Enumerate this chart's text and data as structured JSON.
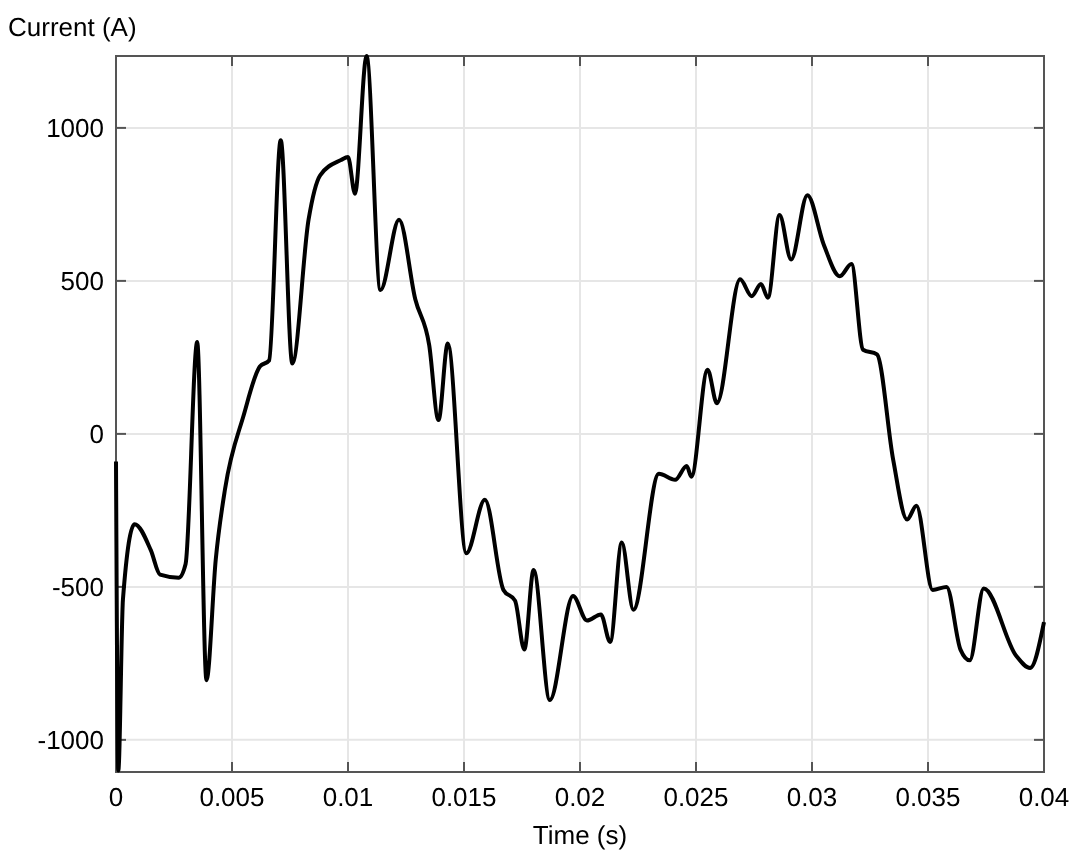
{
  "chart_data": {
    "type": "line",
    "xlabel": "Time (s)",
    "ylabel": "Current (A)",
    "x": [
      0,
      0.0001,
      0.0003,
      0.0008,
      0.0015,
      0.0019,
      0.0027,
      0.003,
      0.0035,
      0.0039,
      0.0043,
      0.0047,
      0.0055,
      0.0062,
      0.0066,
      0.0071,
      0.0076,
      0.0083,
      0.0088,
      0.0097,
      0.01,
      0.0103,
      0.0108,
      0.0114,
      0.0122,
      0.0129,
      0.0135,
      0.0139,
      0.0143,
      0.0151,
      0.0159,
      0.0167,
      0.0172,
      0.0176,
      0.018,
      0.0187,
      0.0197,
      0.0203,
      0.0209,
      0.0213,
      0.0218,
      0.0223,
      0.0234,
      0.0241,
      0.0246,
      0.0248,
      0.0255,
      0.0259,
      0.0269,
      0.0274,
      0.0278,
      0.0281,
      0.0286,
      0.0291,
      0.0298,
      0.0305,
      0.0312,
      0.0317,
      0.0322,
      0.0328,
      0.0335,
      0.0341,
      0.0345,
      0.0352,
      0.0358,
      0.0364,
      0.0368,
      0.0374,
      0.0388,
      0.0394,
      0.04
    ],
    "series": [
      {
        "color": "#000000",
        "values": [
          -90,
          -1100,
          -540,
          -295,
          -380,
          -460,
          -470,
          -425,
          300,
          -805,
          -410,
          -180,
          60,
          220,
          240,
          960,
          230,
          700,
          845,
          895,
          905,
          785,
          1235,
          470,
          700,
          440,
          290,
          45,
          295,
          -390,
          -215,
          -510,
          -545,
          -705,
          -445,
          -870,
          -530,
          -610,
          -590,
          -680,
          -355,
          -575,
          -130,
          -150,
          -105,
          -140,
          210,
          100,
          505,
          450,
          490,
          445,
          715,
          570,
          780,
          620,
          515,
          555,
          275,
          260,
          -85,
          -280,
          -235,
          -510,
          -500,
          -705,
          -740,
          -505,
          -725,
          -765,
          -615
        ]
      }
    ],
    "xlim": [
      0,
      0.04
    ],
    "ylim": [
      -1105,
      1235
    ],
    "xticks": [
      0,
      0.005,
      0.01,
      0.015,
      0.02,
      0.025,
      0.03,
      0.035,
      0.04
    ],
    "yticks": [
      -1000,
      -500,
      0,
      500,
      1000
    ],
    "grid": true
  }
}
